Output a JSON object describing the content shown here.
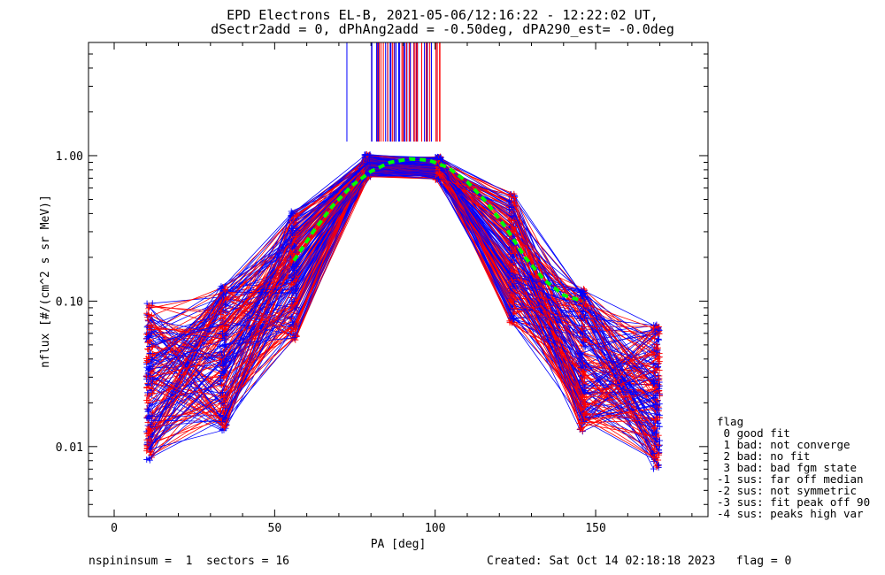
{
  "title_line1": "EPD Electrons EL-B, 2021-05-06/12:16:22 - 12:22:02 UT,",
  "title_line2": "dSectr2add = 0, dPhAng2add = -0.50deg, dPA290_est=  -0.0deg",
  "footer": {
    "left": "nspininsum =  1  sectors = 16",
    "right": "Created: Sat Oct 14 02:18:18 2023   flag = 0"
  },
  "legend": {
    "title": "flag",
    "items": [
      " 0 good fit",
      " 1 bad: not converge",
      " 2 bad: no fit",
      " 3 bad: bad fgm state",
      "-1 sus: far off median",
      "-2 sus: not symmetric",
      "-3 sus: fit peak off 90",
      "-4 sus: peaks high var"
    ]
  },
  "colors": {
    "red": "#ff0000",
    "blue": "#0000ff",
    "fit": "#00ff00",
    "axis": "#000000"
  },
  "chart_data": {
    "type": "line",
    "title": "EPD Electrons EL-B, 2021-05-06/12:16:22 - 12:22:02 UT,",
    "xlabel": "PA [deg]",
    "ylabel": "nflux [#/(cm^2 s sr MeV)]",
    "xlim": [
      -8,
      185
    ],
    "ylim": [
      0.0033,
      6
    ],
    "yscale": "log",
    "xticks": [
      0,
      50,
      100,
      150
    ],
    "xtick_labels": [
      "0",
      "50",
      "100",
      "150"
    ],
    "yticks": [
      0.01,
      0.1,
      1.0
    ],
    "ytick_labels": [
      "0.01",
      "0.10",
      "1.00"
    ],
    "pa_bins": [
      11,
      34,
      56,
      79,
      101,
      124,
      146,
      169
    ],
    "series": [
      {
        "color": "red",
        "values": [
          0.03,
          0.04,
          0.2,
          0.85,
          0.8,
          0.3,
          0.09,
          0.03
        ]
      },
      {
        "color": "blue",
        "values": [
          0.05,
          0.07,
          0.3,
          0.9,
          0.85,
          0.2,
          0.06,
          0.02
        ]
      }
    ],
    "fit": {
      "color": "green",
      "style": "dashed",
      "x": [
        56,
        62,
        68,
        74,
        80,
        86,
        92,
        98,
        104,
        110,
        116,
        122,
        128,
        134,
        140,
        146
      ],
      "y": [
        0.19,
        0.3,
        0.45,
        0.62,
        0.78,
        0.9,
        0.95,
        0.93,
        0.83,
        0.66,
        0.48,
        0.32,
        0.2,
        0.14,
        0.11,
        0.1
      ]
    },
    "grid": false
  }
}
